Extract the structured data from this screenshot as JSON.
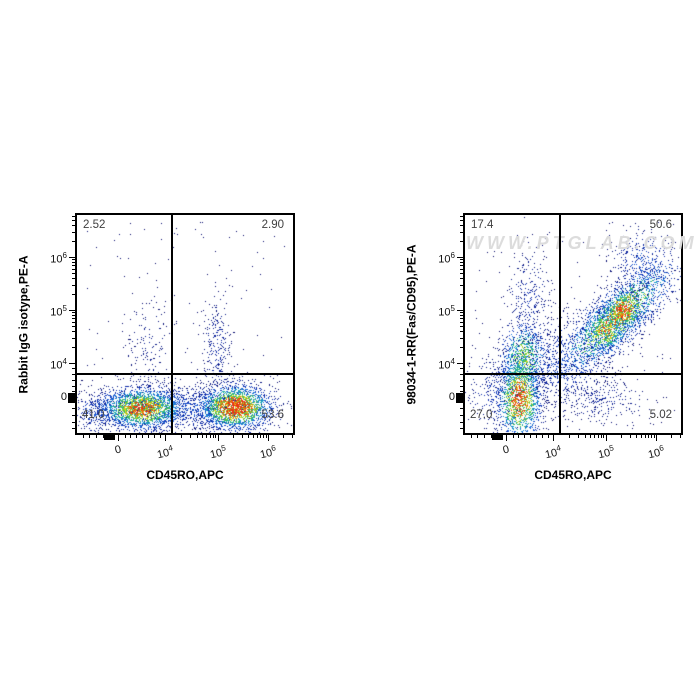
{
  "page": {
    "background": "#ffffff"
  },
  "colors": {
    "frame": "#000000",
    "quadrant_line": "#000000",
    "quadrant_text": "#404040",
    "tick_text": "#111111",
    "axis_label_text": "#000000",
    "watermark": "#dcdcdc"
  },
  "axes": {
    "x_ticks": [
      {
        "t": "0"
      },
      {
        "t": "10",
        "s": "4"
      },
      {
        "t": "10",
        "s": "5"
      },
      {
        "t": "10",
        "s": "6"
      }
    ],
    "y_ticks": [
      {
        "t": "0"
      },
      {
        "t": "10",
        "s": "4"
      },
      {
        "t": "10",
        "s": "5"
      },
      {
        "t": "10",
        "s": "6"
      }
    ]
  },
  "panels": [
    {
      "y_label": "Rabbit IgG isotype,PE-A",
      "x_label": "CD45RO,APC",
      "quadrants": {
        "upper_left": "2.52",
        "upper_right": "2.90",
        "lower_left": "41.0",
        "lower_right": "53.6"
      }
    },
    {
      "y_label": "98034-1-RR(Fas/CD95),PE-A",
      "x_label": "CD45RO,APC",
      "watermark": "WWW.PTGLAB.COM",
      "quadrants": {
        "upper_left": "17.4",
        "upper_right": "50.6",
        "lower_left": "27.0",
        "lower_right": "5.02"
      }
    }
  ],
  "chart_data": [
    {
      "type": "scatter",
      "subtype": "flow-cytometry-pseudocolor-density",
      "xlabel": "CD45RO,APC",
      "ylabel": "Rabbit IgG isotype,PE-A",
      "scale": "biexponential",
      "x_ticks": [
        "0",
        "10^4",
        "10^5",
        "10^6"
      ],
      "y_ticks": [
        "0",
        "10^4",
        "10^5",
        "10^6"
      ],
      "quadrant_percentages": {
        "upper_left": 2.52,
        "upper_right": 2.9,
        "lower_left": 41.0,
        "lower_right": 53.6
      },
      "quadrant_gate": {
        "x_frac": 0.445,
        "y_frac": 0.27
      },
      "seed": 11,
      "clusters": [
        {
          "type": "gauss",
          "cx": 0.3,
          "cy": 0.115,
          "sx": 0.1,
          "sy": 0.048,
          "n": 2300,
          "hot": 0.88
        },
        {
          "type": "gauss",
          "cx": 0.73,
          "cy": 0.12,
          "sx": 0.085,
          "sy": 0.05,
          "n": 2300,
          "hot": 1.0
        },
        {
          "type": "gauss",
          "cx": 0.48,
          "cy": 0.115,
          "sx": 0.21,
          "sy": 0.055,
          "n": 1000,
          "hot": 0.3
        },
        {
          "type": "gauss",
          "cx": 0.09,
          "cy": 0.1,
          "sx": 0.055,
          "sy": 0.05,
          "n": 260,
          "hot": 0.3
        },
        {
          "type": "gauss",
          "cx": 0.33,
          "cy": 0.4,
          "sx": 0.065,
          "sy": 0.13,
          "n": 150,
          "hot": 0.12
        },
        {
          "type": "gauss",
          "cx": 0.645,
          "cy": 0.4,
          "sx": 0.035,
          "sy": 0.13,
          "n": 250,
          "hot": 0.18
        },
        {
          "type": "uniform",
          "x0": 0.04,
          "x1": 0.96,
          "y0": 0.25,
          "y1": 0.97,
          "n": 90,
          "hot": 0.06
        }
      ]
    },
    {
      "type": "scatter",
      "subtype": "flow-cytometry-pseudocolor-density",
      "xlabel": "CD45RO,APC",
      "ylabel": "98034-1-RR(Fas/CD95),PE-A",
      "scale": "biexponential",
      "x_ticks": [
        "0",
        "10^4",
        "10^5",
        "10^6"
      ],
      "y_ticks": [
        "0",
        "10^4",
        "10^5",
        "10^6"
      ],
      "quadrant_percentages": {
        "upper_left": 17.4,
        "upper_right": 50.6,
        "lower_left": 27.0,
        "lower_right": 5.02
      },
      "quadrant_gate": {
        "x_frac": 0.445,
        "y_frac": 0.27
      },
      "seed": 23,
      "clusters": [
        {
          "type": "gauss",
          "cx": 0.25,
          "cy": 0.16,
          "sx": 0.05,
          "sy": 0.1,
          "n": 1600,
          "hot": 0.95
        },
        {
          "type": "gauss",
          "cx": 0.27,
          "cy": 0.345,
          "sx": 0.055,
          "sy": 0.09,
          "n": 850,
          "hot": 0.7
        },
        {
          "type": "gauss",
          "cx": 0.29,
          "cy": 0.6,
          "sx": 0.055,
          "sy": 0.13,
          "n": 280,
          "hot": 0.2
        },
        {
          "type": "gauss",
          "cx": 0.12,
          "cy": 0.18,
          "sx": 0.06,
          "sy": 0.1,
          "n": 200,
          "hot": 0.2
        },
        {
          "type": "diag",
          "cx": 0.695,
          "cy": 0.525,
          "spread": 0.115,
          "sx": 0.055,
          "sy": 0.06,
          "n": 2300,
          "hot": 0.9
        },
        {
          "type": "gauss",
          "cx": 0.73,
          "cy": 0.565,
          "sx": 0.045,
          "sy": 0.045,
          "n": 550,
          "hot": 1.0
        },
        {
          "type": "gauss",
          "cx": 0.65,
          "cy": 0.47,
          "sx": 0.05,
          "sy": 0.05,
          "n": 450,
          "hot": 0.8
        },
        {
          "type": "gauss",
          "cx": 0.46,
          "cy": 0.33,
          "sx": 0.1,
          "sy": 0.1,
          "n": 550,
          "hot": 0.28
        },
        {
          "type": "gauss",
          "cx": 0.62,
          "cy": 0.15,
          "sx": 0.13,
          "sy": 0.06,
          "n": 260,
          "hot": 0.15
        },
        {
          "type": "gauss",
          "cx": 0.82,
          "cy": 0.78,
          "sx": 0.07,
          "sy": 0.08,
          "n": 330,
          "hot": 0.3
        },
        {
          "type": "uniform",
          "x0": 0.04,
          "x1": 0.97,
          "y0": 0.05,
          "y1": 0.97,
          "n": 130,
          "hot": 0.05
        }
      ]
    }
  ],
  "colormap": [
    {
      "t": 0,
      "c": "#050561"
    },
    {
      "t": 0.22,
      "c": "#1030b4"
    },
    {
      "t": 0.4,
      "c": "#1e6fe0"
    },
    {
      "t": 0.52,
      "c": "#1ba8c8"
    },
    {
      "t": 0.64,
      "c": "#25b768"
    },
    {
      "t": 0.76,
      "c": "#7fce30"
    },
    {
      "t": 0.86,
      "c": "#e8e020"
    },
    {
      "t": 0.93,
      "c": "#f09010"
    },
    {
      "t": 1,
      "c": "#e83510"
    }
  ]
}
